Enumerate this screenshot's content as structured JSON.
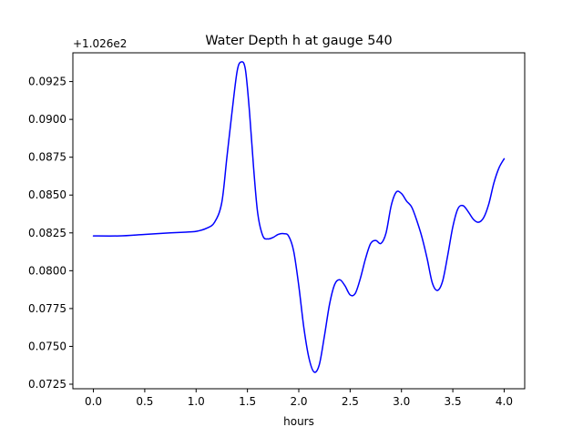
{
  "chart_data": {
    "type": "line",
    "title": "Water Depth h at gauge 540",
    "xlabel": "hours",
    "ylabel": "",
    "y_offset_label": "+1.026e2",
    "xlim": [
      -0.2,
      4.2
    ],
    "ylim": [
      0.0722,
      0.0944
    ],
    "xticks": [
      0.0,
      0.5,
      1.0,
      1.5,
      2.0,
      2.5,
      3.0,
      3.5,
      4.0
    ],
    "xtick_labels": [
      "0.0",
      "0.5",
      "1.0",
      "1.5",
      "2.0",
      "2.5",
      "3.0",
      "3.5",
      "4.0"
    ],
    "yticks": [
      0.0725,
      0.075,
      0.0775,
      0.08,
      0.0825,
      0.085,
      0.0875,
      0.09,
      0.0925
    ],
    "ytick_labels": [
      "0.0725",
      "0.0750",
      "0.0775",
      "0.0800",
      "0.0825",
      "0.0850",
      "0.0875",
      "0.0900",
      "0.0925"
    ],
    "grid": false,
    "series": [
      {
        "color": "#0000ff",
        "x": [
          0.0,
          0.25,
          0.5,
          0.75,
          0.9,
          1.0,
          1.1,
          1.18,
          1.25,
          1.3,
          1.35,
          1.4,
          1.44,
          1.48,
          1.52,
          1.56,
          1.6,
          1.65,
          1.7,
          1.75,
          1.8,
          1.85,
          1.9,
          1.95,
          2.0,
          2.05,
          2.1,
          2.15,
          2.2,
          2.25,
          2.3,
          2.35,
          2.4,
          2.45,
          2.5,
          2.55,
          2.6,
          2.65,
          2.7,
          2.75,
          2.8,
          2.85,
          2.9,
          2.95,
          3.0,
          3.05,
          3.1,
          3.15,
          3.2,
          3.25,
          3.3,
          3.35,
          3.4,
          3.45,
          3.5,
          3.55,
          3.6,
          3.65,
          3.7,
          3.75,
          3.8,
          3.85,
          3.9,
          3.95,
          4.0
        ],
        "y": [
          0.0823,
          0.0823,
          0.0824,
          0.0825,
          0.08255,
          0.0826,
          0.0828,
          0.0832,
          0.0845,
          0.0875,
          0.0905,
          0.0932,
          0.0938,
          0.0933,
          0.0905,
          0.0868,
          0.0838,
          0.0823,
          0.0821,
          0.0822,
          0.0824,
          0.08245,
          0.0823,
          0.0813,
          0.079,
          0.0762,
          0.0742,
          0.0733,
          0.0738,
          0.0757,
          0.0778,
          0.0791,
          0.0794,
          0.079,
          0.0784,
          0.0785,
          0.0795,
          0.0808,
          0.0818,
          0.082,
          0.0818,
          0.0825,
          0.0843,
          0.0852,
          0.0851,
          0.0846,
          0.0842,
          0.0833,
          0.0822,
          0.0808,
          0.0792,
          0.0787,
          0.0793,
          0.081,
          0.0829,
          0.0841,
          0.0843,
          0.0839,
          0.0834,
          0.0832,
          0.0835,
          0.0844,
          0.0858,
          0.0868,
          0.0874
        ]
      }
    ]
  }
}
